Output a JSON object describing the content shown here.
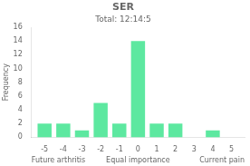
{
  "chart_data": {
    "type": "bar",
    "title": "SER",
    "subtitle": "Total: 12:14:5",
    "x": [
      -5,
      -4,
      -3,
      -2,
      -1,
      0,
      1,
      2,
      3,
      4,
      5
    ],
    "values": [
      2,
      2,
      1,
      5,
      2,
      14,
      2,
      2,
      0,
      1,
      0
    ],
    "color": "#5de8a0",
    "xlim": [
      -5.7,
      5.7
    ],
    "xticks": [
      -5,
      -4,
      -3,
      -2,
      -1,
      0,
      1,
      2,
      3,
      4,
      5
    ],
    "ylim": [
      0,
      16
    ],
    "yticks": [
      0,
      2,
      4,
      6,
      8,
      10,
      12,
      14,
      16
    ],
    "ylabel": "Frequency",
    "annotations": [
      "Future arthritis",
      "Equal importance",
      "Current pain"
    ],
    "grid": false
  }
}
